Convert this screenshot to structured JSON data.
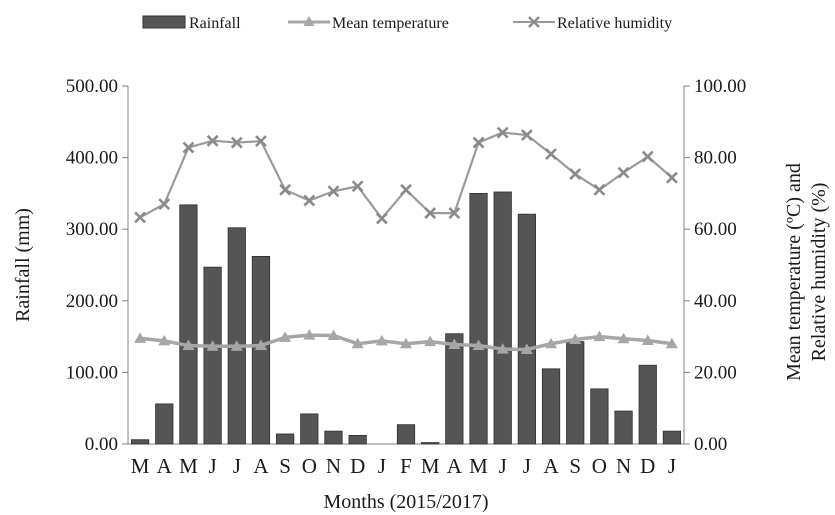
{
  "chart_data": {
    "type": "bar",
    "xlabel": "Months (2015/2017)",
    "ylabel_left": "Rainfall (mm)",
    "ylabel_right_lines": [
      "Mean temperature (ºC) and",
      "Relative humidity (%)"
    ],
    "ylim_left": [
      0,
      500
    ],
    "ylim_right": [
      0,
      100
    ],
    "yticks_left": [
      "0.00",
      "100.00",
      "200.00",
      "300.00",
      "400.00",
      "500.00"
    ],
    "yticks_right": [
      "0.00",
      "20.00",
      "40.00",
      "60.00",
      "80.00",
      "100.00"
    ],
    "categories": [
      "M",
      "A",
      "M",
      "J",
      "J",
      "A",
      "S",
      "O",
      "N",
      "D",
      "J",
      "F",
      "M",
      "A",
      "M",
      "J",
      "J",
      "A",
      "S",
      "O",
      "N",
      "D",
      "J"
    ],
    "grid": false,
    "legend_position": "top",
    "series": [
      {
        "name": "Rainfall",
        "kind": "bar",
        "axis": "left",
        "color": "#555555",
        "values": [
          6,
          56,
          334,
          247,
          302,
          262,
          14,
          42,
          18,
          12,
          0,
          27,
          2,
          154,
          350,
          352,
          321,
          105,
          143,
          77,
          46,
          110,
          18
        ]
      },
      {
        "name": "Mean temperature",
        "kind": "line",
        "axis": "right",
        "marker": "triangle",
        "color": "#a6a6a6",
        "values": [
          29.5,
          28.8,
          27.5,
          27.3,
          27.3,
          27.5,
          29.8,
          30.4,
          30.3,
          28.0,
          28.8,
          28.0,
          28.6,
          27.8,
          27.5,
          26.5,
          26.4,
          28.0,
          29.2,
          30.0,
          29.4,
          28.9,
          28.0
        ]
      },
      {
        "name": "Relative humidity",
        "kind": "line",
        "axis": "right",
        "marker": "x",
        "color": "#9a9a9a",
        "values": [
          63.3,
          67.0,
          82.8,
          84.7,
          84.2,
          84.6,
          71.0,
          68.0,
          70.6,
          72.0,
          63.0,
          71.0,
          64.5,
          64.5,
          84.2,
          87.0,
          86.3,
          81.0,
          75.4,
          71.0,
          75.8,
          80.3,
          74.4
        ]
      }
    ]
  }
}
